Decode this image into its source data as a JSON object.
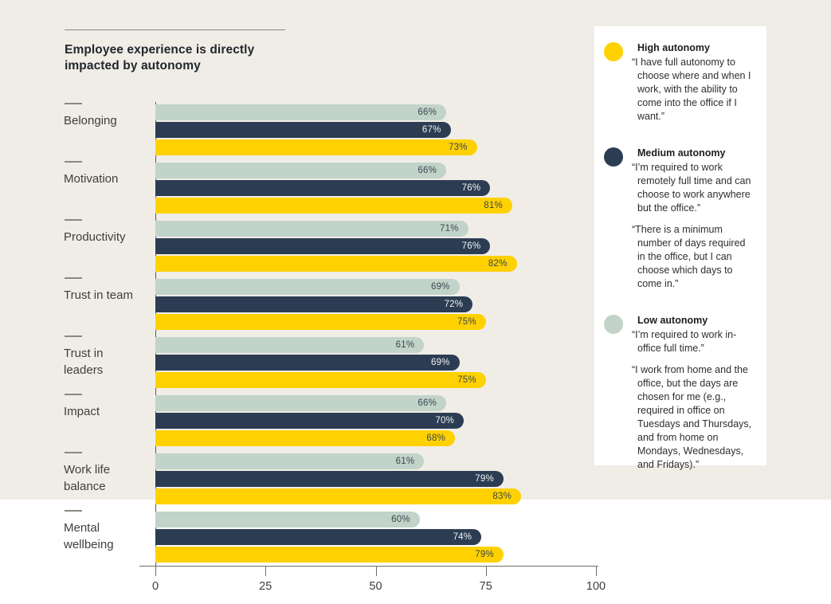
{
  "header": {
    "title_line1": "Employee experience is directly",
    "title_line2": "impacted by autonomy"
  },
  "chart_data": {
    "type": "bar",
    "orientation": "horizontal",
    "title": "Employee experience is directly impacted by autonomy",
    "categories": [
      "Belonging",
      "Motivation",
      "Productivity",
      "Trust in team",
      "Trust in leaders",
      "Impact",
      "Work life balance",
      "Mental wellbeing"
    ],
    "series": [
      {
        "name": "Low autonomy",
        "color": "#C2D3C9",
        "label_color": "#3A4750",
        "values": [
          66,
          66,
          71,
          69,
          61,
          66,
          61,
          60
        ]
      },
      {
        "name": "Medium autonomy",
        "color": "#2C3D53",
        "label_color": "#F2F3F4",
        "values": [
          67,
          76,
          76,
          72,
          69,
          70,
          79,
          74
        ]
      },
      {
        "name": "High autonomy",
        "color": "#FFD100",
        "label_color": "#3A4750",
        "values": [
          73,
          81,
          82,
          75,
          75,
          68,
          83,
          79
        ]
      }
    ],
    "value_suffix": "%",
    "xlim": [
      0,
      100
    ],
    "x_ticks": [
      0,
      25,
      50,
      75,
      100
    ],
    "grid": false,
    "legend_position": "right"
  },
  "legend": {
    "items": [
      {
        "name": "High autonomy",
        "color": "#FFD100",
        "quotes": [
          "“I have full autonomy to choose where and when I work, with the ability to come into the office if I want.”"
        ]
      },
      {
        "name": "Medium autonomy",
        "color": "#2C3D53",
        "quotes": [
          "“I’m required to work remotely full time and can choose to work anywhere but the office.”",
          "“There is a minimum number of days required in the office, but I can choose which days to come in.”"
        ]
      },
      {
        "name": "Low autonomy",
        "color": "#C2D3C9",
        "quotes": [
          "“I’m required to work in-office full time.”",
          "“I work from home and the office, but the days are chosen for me (e.g., required in office on Tuesdays and Thursdays, and from home on Mondays, Wednesdays, and Fridays).”"
        ]
      }
    ]
  },
  "colors": {
    "background_top": "#F0EDE7",
    "background_bottom": "#FFFFFF",
    "panel": "#FFFFFF",
    "axis": "#6E6E6A",
    "text": "#3E3E3C"
  }
}
